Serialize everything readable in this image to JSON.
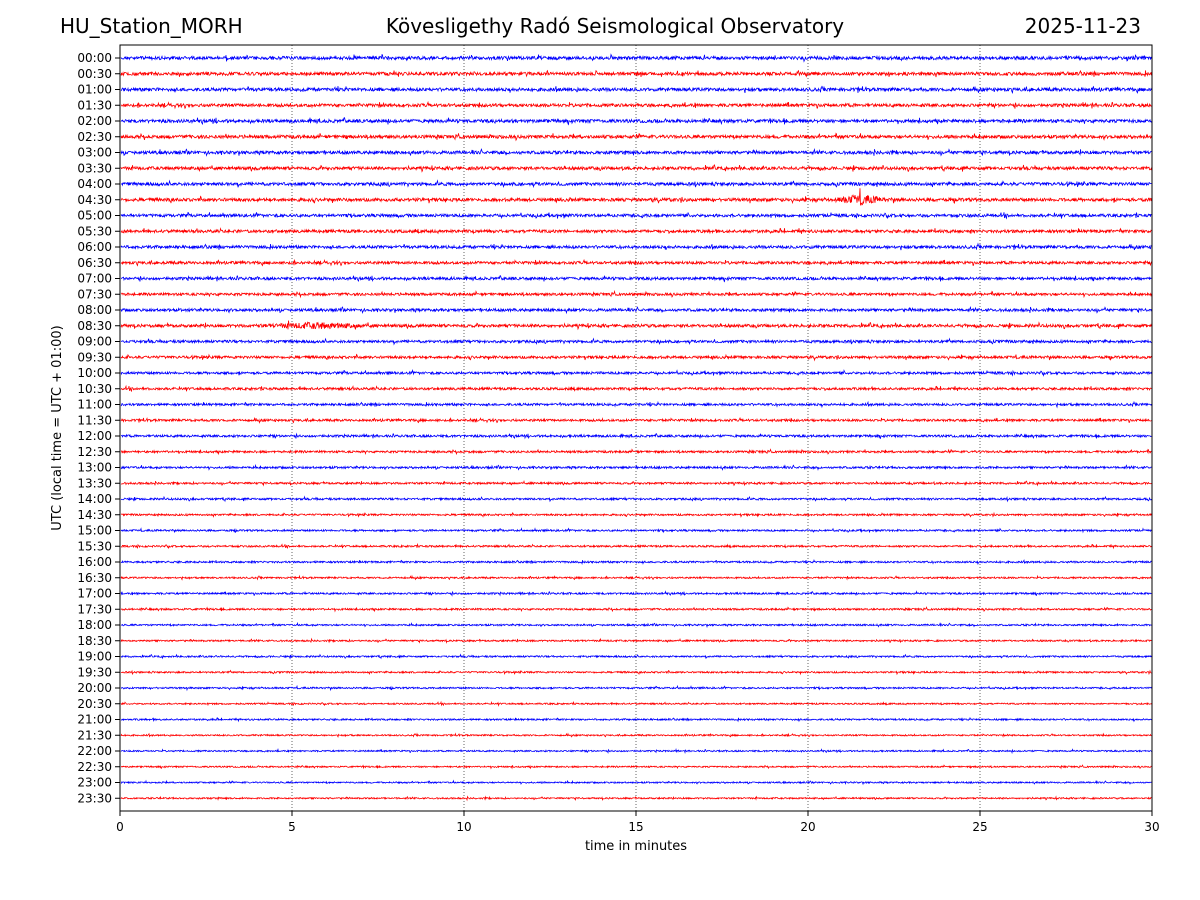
{
  "header": {
    "station": "HU_Station_MORH",
    "observatory": "Kövesligethy Radó Seismological Observatory",
    "date": "2025-11-23"
  },
  "chart_data": {
    "type": "line",
    "title": "Kövesligethy Radó Seismological Observatory",
    "xlabel": "time in minutes",
    "ylabel": "UTC (local time = UTC + 01:00)",
    "xlim": [
      0,
      30
    ],
    "x_ticks": [
      "0",
      "5",
      "10",
      "15",
      "20",
      "25",
      "30"
    ],
    "grid": "vertical dotted at 5-minute ticks",
    "colors": {
      "even_rows": "#0000ff",
      "odd_rows": "#ff0000"
    },
    "rows": [
      "00:00",
      "00:30",
      "01:00",
      "01:30",
      "02:00",
      "02:30",
      "03:00",
      "03:30",
      "04:00",
      "04:30",
      "05:00",
      "05:30",
      "06:00",
      "06:30",
      "07:00",
      "07:30",
      "08:00",
      "08:30",
      "09:00",
      "09:30",
      "10:00",
      "10:30",
      "11:00",
      "11:30",
      "12:00",
      "12:30",
      "13:00",
      "13:30",
      "14:00",
      "14:30",
      "15:00",
      "15:30",
      "16:00",
      "16:30",
      "17:00",
      "17:30",
      "18:00",
      "18:30",
      "19:00",
      "19:30",
      "20:00",
      "20:30",
      "21:00",
      "21:30",
      "22:00",
      "22:30",
      "23:00",
      "23:30"
    ],
    "noise_level": [
      1.0,
      1.0,
      1.0,
      0.95,
      1.0,
      1.0,
      0.95,
      0.95,
      0.95,
      1.0,
      0.9,
      0.9,
      0.9,
      0.85,
      0.85,
      0.8,
      0.85,
      0.9,
      0.8,
      0.8,
      0.75,
      0.75,
      0.7,
      0.7,
      0.7,
      0.65,
      0.65,
      0.6,
      0.6,
      0.55,
      0.55,
      0.55,
      0.55,
      0.5,
      0.55,
      0.55,
      0.5,
      0.5,
      0.5,
      0.5,
      0.5,
      0.45,
      0.5,
      0.45,
      0.45,
      0.45,
      0.45,
      0.45
    ],
    "events": [
      {
        "row": "04:30",
        "minute_start": 20.7,
        "minute_end": 22.3,
        "amplitude": 3.5
      },
      {
        "row": "08:30",
        "minute_start": 3.9,
        "minute_end": 7.5,
        "amplitude": 2.5
      }
    ]
  }
}
